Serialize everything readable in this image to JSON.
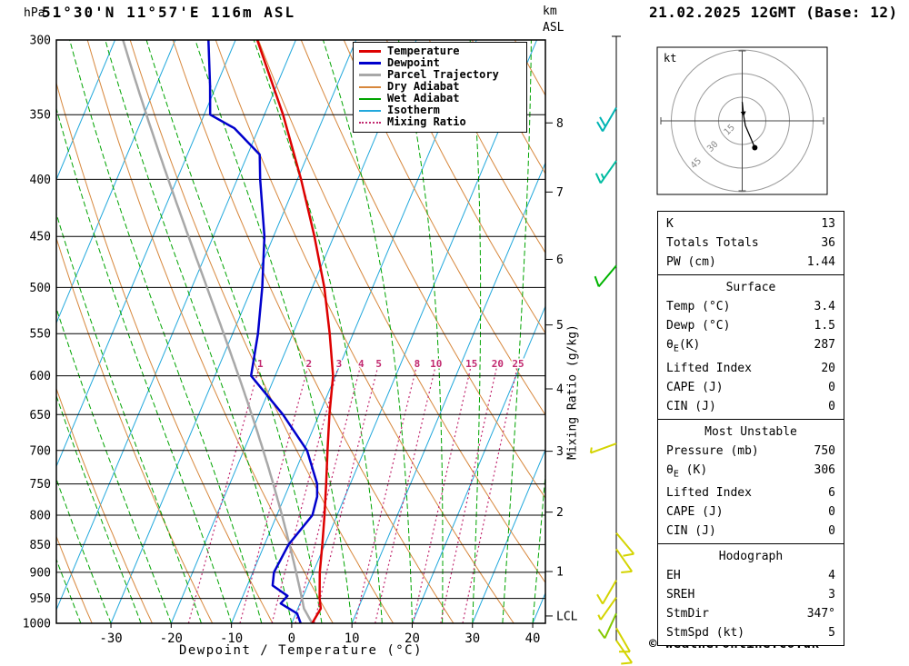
{
  "copyright": "© weatheronline.co.uk",
  "legend": {
    "items": [
      {
        "label": "Temperature",
        "color": "#dd0000",
        "style": "solid",
        "width": 3
      },
      {
        "label": "Dewpoint",
        "color": "#0000cc",
        "style": "solid",
        "width": 3
      },
      {
        "label": "Parcel Trajectory",
        "color": "#a8a8a8",
        "style": "solid",
        "width": 3
      },
      {
        "label": "Dry Adiabat",
        "color": "#d7873c",
        "style": "solid",
        "width": 2
      },
      {
        "label": "Wet Adiabat",
        "color": "#00a400",
        "style": "solid",
        "width": 2
      },
      {
        "label": "Isotherm",
        "color": "#22a8dc",
        "style": "solid",
        "width": 2
      },
      {
        "label": "Mixing Ratio",
        "color": "#c22a70",
        "style": "dotted",
        "width": 2
      }
    ]
  },
  "chart_data": {
    "type": "skewt-log-p",
    "title": "51°30'N 11°57'E 116m ASL",
    "datetime": "21.02.2025 12GMT (Base: 12)",
    "pressure_unit": "hPa",
    "km_unit": "km",
    "asl": "ASL",
    "xlabel": "Dewpoint / Temperature (°C)",
    "mixing_axis_label": "Mixing Ratio (g/kg)",
    "pressure_ticks": [
      300,
      350,
      400,
      450,
      500,
      550,
      600,
      650,
      700,
      750,
      800,
      850,
      900,
      950,
      1000
    ],
    "temp_ticks": [
      -30,
      -20,
      -10,
      0,
      10,
      20,
      30,
      40
    ],
    "km_ticks": [
      1,
      2,
      3,
      4,
      5,
      6,
      7,
      8
    ],
    "lcl": {
      "label": "LCL",
      "pressure": 985
    },
    "mixing_ratio_lines": [
      1,
      2,
      3,
      4,
      5,
      8,
      10,
      15,
      20,
      25
    ],
    "isotherms": {
      "min": -120,
      "max": 40,
      "step": 10
    },
    "dry_adiabats_theta_K": {
      "min": 230,
      "max": 390,
      "step": 10
    },
    "wet_adiabats_T0_C": {
      "min": -70,
      "max": 40,
      "step": 5
    },
    "temperature_profile": [
      [
        1000,
        3.4
      ],
      [
        970,
        3.8
      ],
      [
        950,
        2.9
      ],
      [
        900,
        1.1
      ],
      [
        850,
        -0.4
      ],
      [
        800,
        -2.1
      ],
      [
        750,
        -4.0
      ],
      [
        700,
        -6.1
      ],
      [
        650,
        -8.3
      ],
      [
        600,
        -10.4
      ],
      [
        550,
        -13.9
      ],
      [
        500,
        -18.0
      ],
      [
        450,
        -23.2
      ],
      [
        400,
        -29.4
      ],
      [
        350,
        -36.9
      ],
      [
        300,
        -46.4
      ]
    ],
    "dewpoint_profile": [
      [
        1000,
        1.5
      ],
      [
        980,
        0.2
      ],
      [
        960,
        -3.2
      ],
      [
        945,
        -2.6
      ],
      [
        925,
        -5.8
      ],
      [
        900,
        -6.5
      ],
      [
        850,
        -6.0
      ],
      [
        800,
        -4.1
      ],
      [
        770,
        -4.6
      ],
      [
        750,
        -5.5
      ],
      [
        700,
        -9.5
      ],
      [
        650,
        -16.0
      ],
      [
        600,
        -24.0
      ],
      [
        550,
        -25.8
      ],
      [
        500,
        -28.3
      ],
      [
        450,
        -31.5
      ],
      [
        400,
        -36.2
      ],
      [
        380,
        -38.0
      ],
      [
        360,
        -44.0
      ],
      [
        350,
        -49.0
      ],
      [
        330,
        -51.0
      ],
      [
        300,
        -54.5
      ]
    ],
    "parcel": {
      "surface_temp_C": 3.4,
      "surface_dewp_C": 1.5
    },
    "winds": [
      {
        "p": 345,
        "dir": 210,
        "spd": 20,
        "color": "#00b4b4"
      },
      {
        "p": 385,
        "dir": 215,
        "spd": 15,
        "color": "#00bca0"
      },
      {
        "p": 478,
        "dir": 220,
        "spd": 10,
        "color": "#00b400"
      },
      {
        "p": 690,
        "dir": 250,
        "spd": 5,
        "color": "#d4d400"
      },
      {
        "p": 830,
        "dir": 140,
        "spd": 10,
        "color": "#d4d400"
      },
      {
        "p": 858,
        "dir": 145,
        "spd": 10,
        "color": "#d4d400"
      },
      {
        "p": 915,
        "dir": 210,
        "spd": 10,
        "color": "#d4d400"
      },
      {
        "p": 948,
        "dir": 215,
        "spd": 5,
        "color": "#d4d400"
      },
      {
        "p": 980,
        "dir": 205,
        "spd": 10,
        "color": "#84c800"
      },
      {
        "p": 1010,
        "dir": 150,
        "spd": 10,
        "color": "#d4d400"
      },
      {
        "p": 1036,
        "dir": 145,
        "spd": 10,
        "color": "#d4d400"
      }
    ],
    "hodograph": {
      "unit": "kt",
      "rings_kt": [
        15,
        30,
        45
      ],
      "trace_kt": [
        [
          0,
          -12
        ],
        [
          1,
          -3
        ],
        [
          2,
          3
        ],
        [
          8,
          17
        ]
      ]
    }
  },
  "panel": {
    "indices": {
      "k_label": "K",
      "k_value": "13",
      "tt_label": "Totals Totals",
      "tt_value": "36",
      "pw_label": "PW (cm)",
      "pw_value": "1.44"
    },
    "surface": {
      "title": "Surface",
      "temp_label": "Temp (°C)",
      "temp_value": "3.4",
      "dewp_label": "Dewp (°C)",
      "dewp_value": "1.5",
      "thetae_theta": "θ",
      "thetae_sub": "E",
      "thetae_rest": "(K)",
      "thetae_value": "287",
      "li_label": "Lifted Index",
      "li_value": "20",
      "cape_label": "CAPE (J)",
      "cape_value": "0",
      "cin_label": "CIN (J)",
      "cin_value": "0"
    },
    "most_unstable": {
      "title": "Most Unstable",
      "pres_label": "Pressure (mb)",
      "pres_value": "750",
      "thetae_theta": "θ",
      "thetae_sub": "E",
      "thetae_rest": " (K)",
      "thetae_value": "306",
      "li_label": "Lifted Index",
      "li_value": "6",
      "cape_label": "CAPE (J)",
      "cape_value": "0",
      "cin_label": "CIN (J)",
      "cin_value": "0"
    },
    "hodograph": {
      "title": "Hodograph",
      "eh_label": "EH",
      "eh_value": "4",
      "sreh_label": "SREH",
      "sreh_value": "3",
      "stmdir_label": "StmDir",
      "stmdir_value": "347°",
      "stmspd_label": "StmSpd (kt)",
      "stmspd_value": "5"
    }
  }
}
